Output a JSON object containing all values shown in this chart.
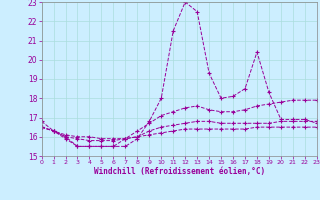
{
  "xlabel": "Windchill (Refroidissement éolien,°C)",
  "xlim": [
    0,
    23
  ],
  "ylim": [
    15,
    23
  ],
  "yticks": [
    15,
    16,
    17,
    18,
    19,
    20,
    21,
    22,
    23
  ],
  "xticks": [
    0,
    1,
    2,
    3,
    4,
    5,
    6,
    7,
    8,
    9,
    10,
    11,
    12,
    13,
    14,
    15,
    16,
    17,
    18,
    19,
    20,
    21,
    22,
    23
  ],
  "bg_color": "#cceeff",
  "grid_color": "#aadddd",
  "line_color": "#990099",
  "lines": [
    {
      "x": [
        0,
        1,
        2,
        3,
        4,
        5,
        6,
        7,
        8,
        9,
        10,
        11,
        12,
        13,
        14,
        15,
        16,
        17,
        18,
        19,
        20,
        21,
        22,
        23
      ],
      "y": [
        16.8,
        16.3,
        16.0,
        15.5,
        15.5,
        15.5,
        15.5,
        15.5,
        15.9,
        16.8,
        18.0,
        21.5,
        23.0,
        22.5,
        19.3,
        18.0,
        18.1,
        18.5,
        20.4,
        18.3,
        16.9,
        16.9,
        16.9,
        16.7
      ]
    },
    {
      "x": [
        0,
        1,
        2,
        3,
        4,
        5,
        6,
        7,
        8,
        9,
        10,
        11,
        12,
        13,
        14,
        15,
        16,
        17,
        18,
        19,
        20,
        21,
        22,
        23
      ],
      "y": [
        16.5,
        16.3,
        15.9,
        15.5,
        15.5,
        15.5,
        15.5,
        15.9,
        16.3,
        16.7,
        17.1,
        17.3,
        17.5,
        17.6,
        17.4,
        17.3,
        17.3,
        17.4,
        17.6,
        17.7,
        17.8,
        17.9,
        17.9,
        17.9
      ]
    },
    {
      "x": [
        0,
        1,
        2,
        3,
        4,
        5,
        6,
        7,
        8,
        9,
        10,
        11,
        12,
        13,
        14,
        15,
        16,
        17,
        18,
        19,
        20,
        21,
        22,
        23
      ],
      "y": [
        16.5,
        16.3,
        16.0,
        15.9,
        15.8,
        15.8,
        15.8,
        15.9,
        16.0,
        16.3,
        16.5,
        16.6,
        16.7,
        16.8,
        16.8,
        16.7,
        16.7,
        16.7,
        16.7,
        16.7,
        16.8,
        16.8,
        16.8,
        16.8
      ]
    },
    {
      "x": [
        0,
        1,
        2,
        3,
        4,
        5,
        6,
        7,
        8,
        9,
        10,
        11,
        12,
        13,
        14,
        15,
        16,
        17,
        18,
        19,
        20,
        21,
        22,
        23
      ],
      "y": [
        16.5,
        16.3,
        16.1,
        16.0,
        16.0,
        15.9,
        15.9,
        15.9,
        16.0,
        16.1,
        16.2,
        16.3,
        16.4,
        16.4,
        16.4,
        16.4,
        16.4,
        16.4,
        16.5,
        16.5,
        16.5,
        16.5,
        16.5,
        16.5
      ]
    }
  ]
}
